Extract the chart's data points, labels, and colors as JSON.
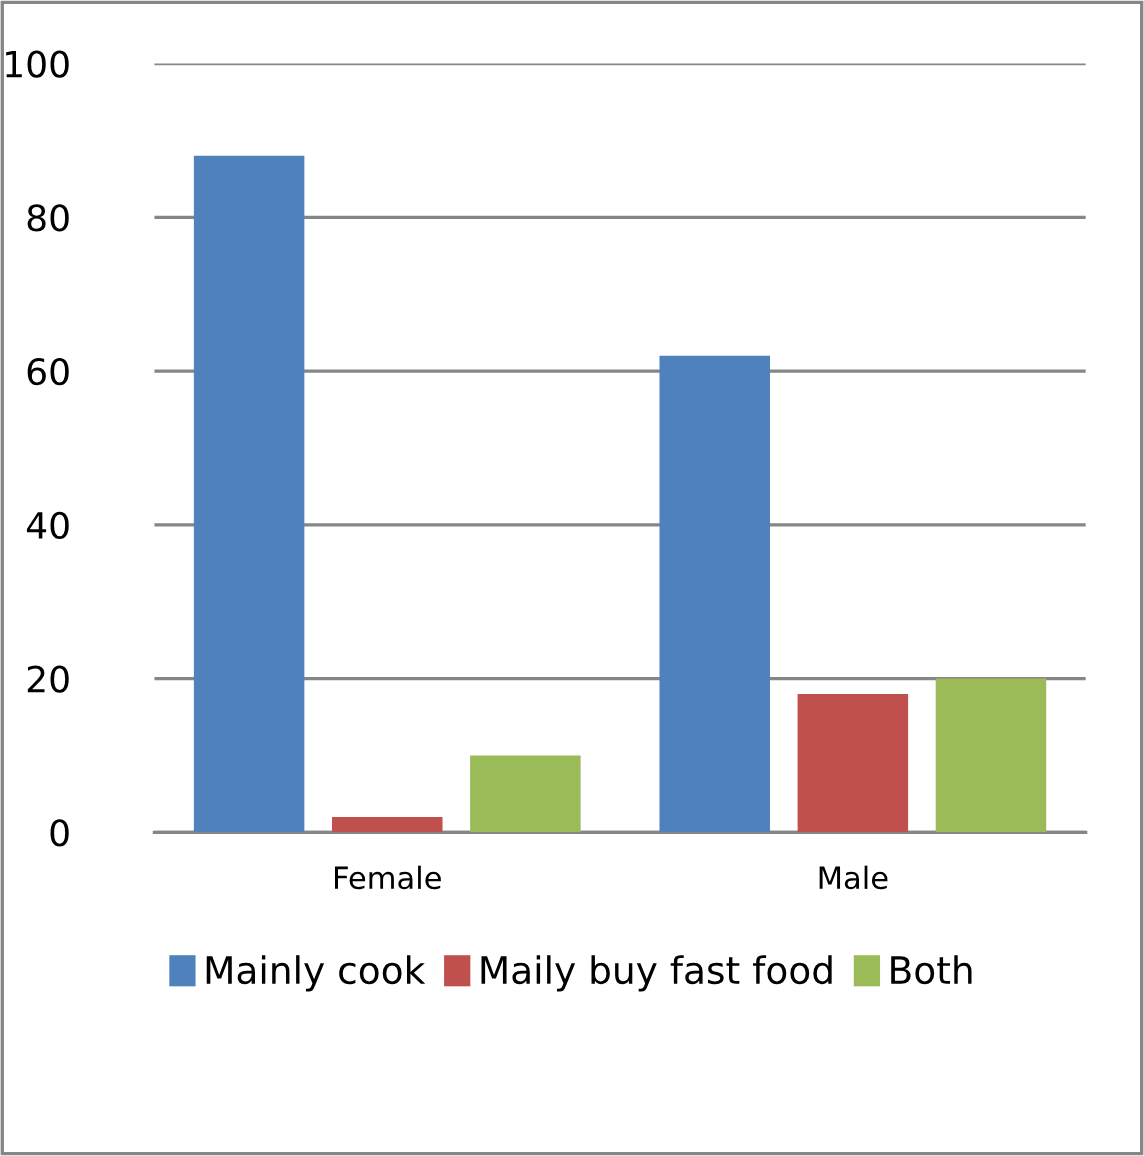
{
  "chart_data": {
    "type": "bar",
    "categories": [
      "Female",
      "Male"
    ],
    "series": [
      {
        "name": "Mainly cook",
        "color": "#4f81bd",
        "values": [
          88,
          62
        ]
      },
      {
        "name": "Maily buy fast food",
        "color": "#c0504d",
        "values": [
          2,
          18
        ]
      },
      {
        "name": "Both",
        "color": "#9bbb59",
        "values": [
          10,
          20
        ]
      }
    ],
    "ylim": [
      0,
      100
    ],
    "yticks": [
      0,
      20,
      40,
      60,
      80,
      100
    ],
    "grid": "y",
    "legend": "bottom"
  }
}
